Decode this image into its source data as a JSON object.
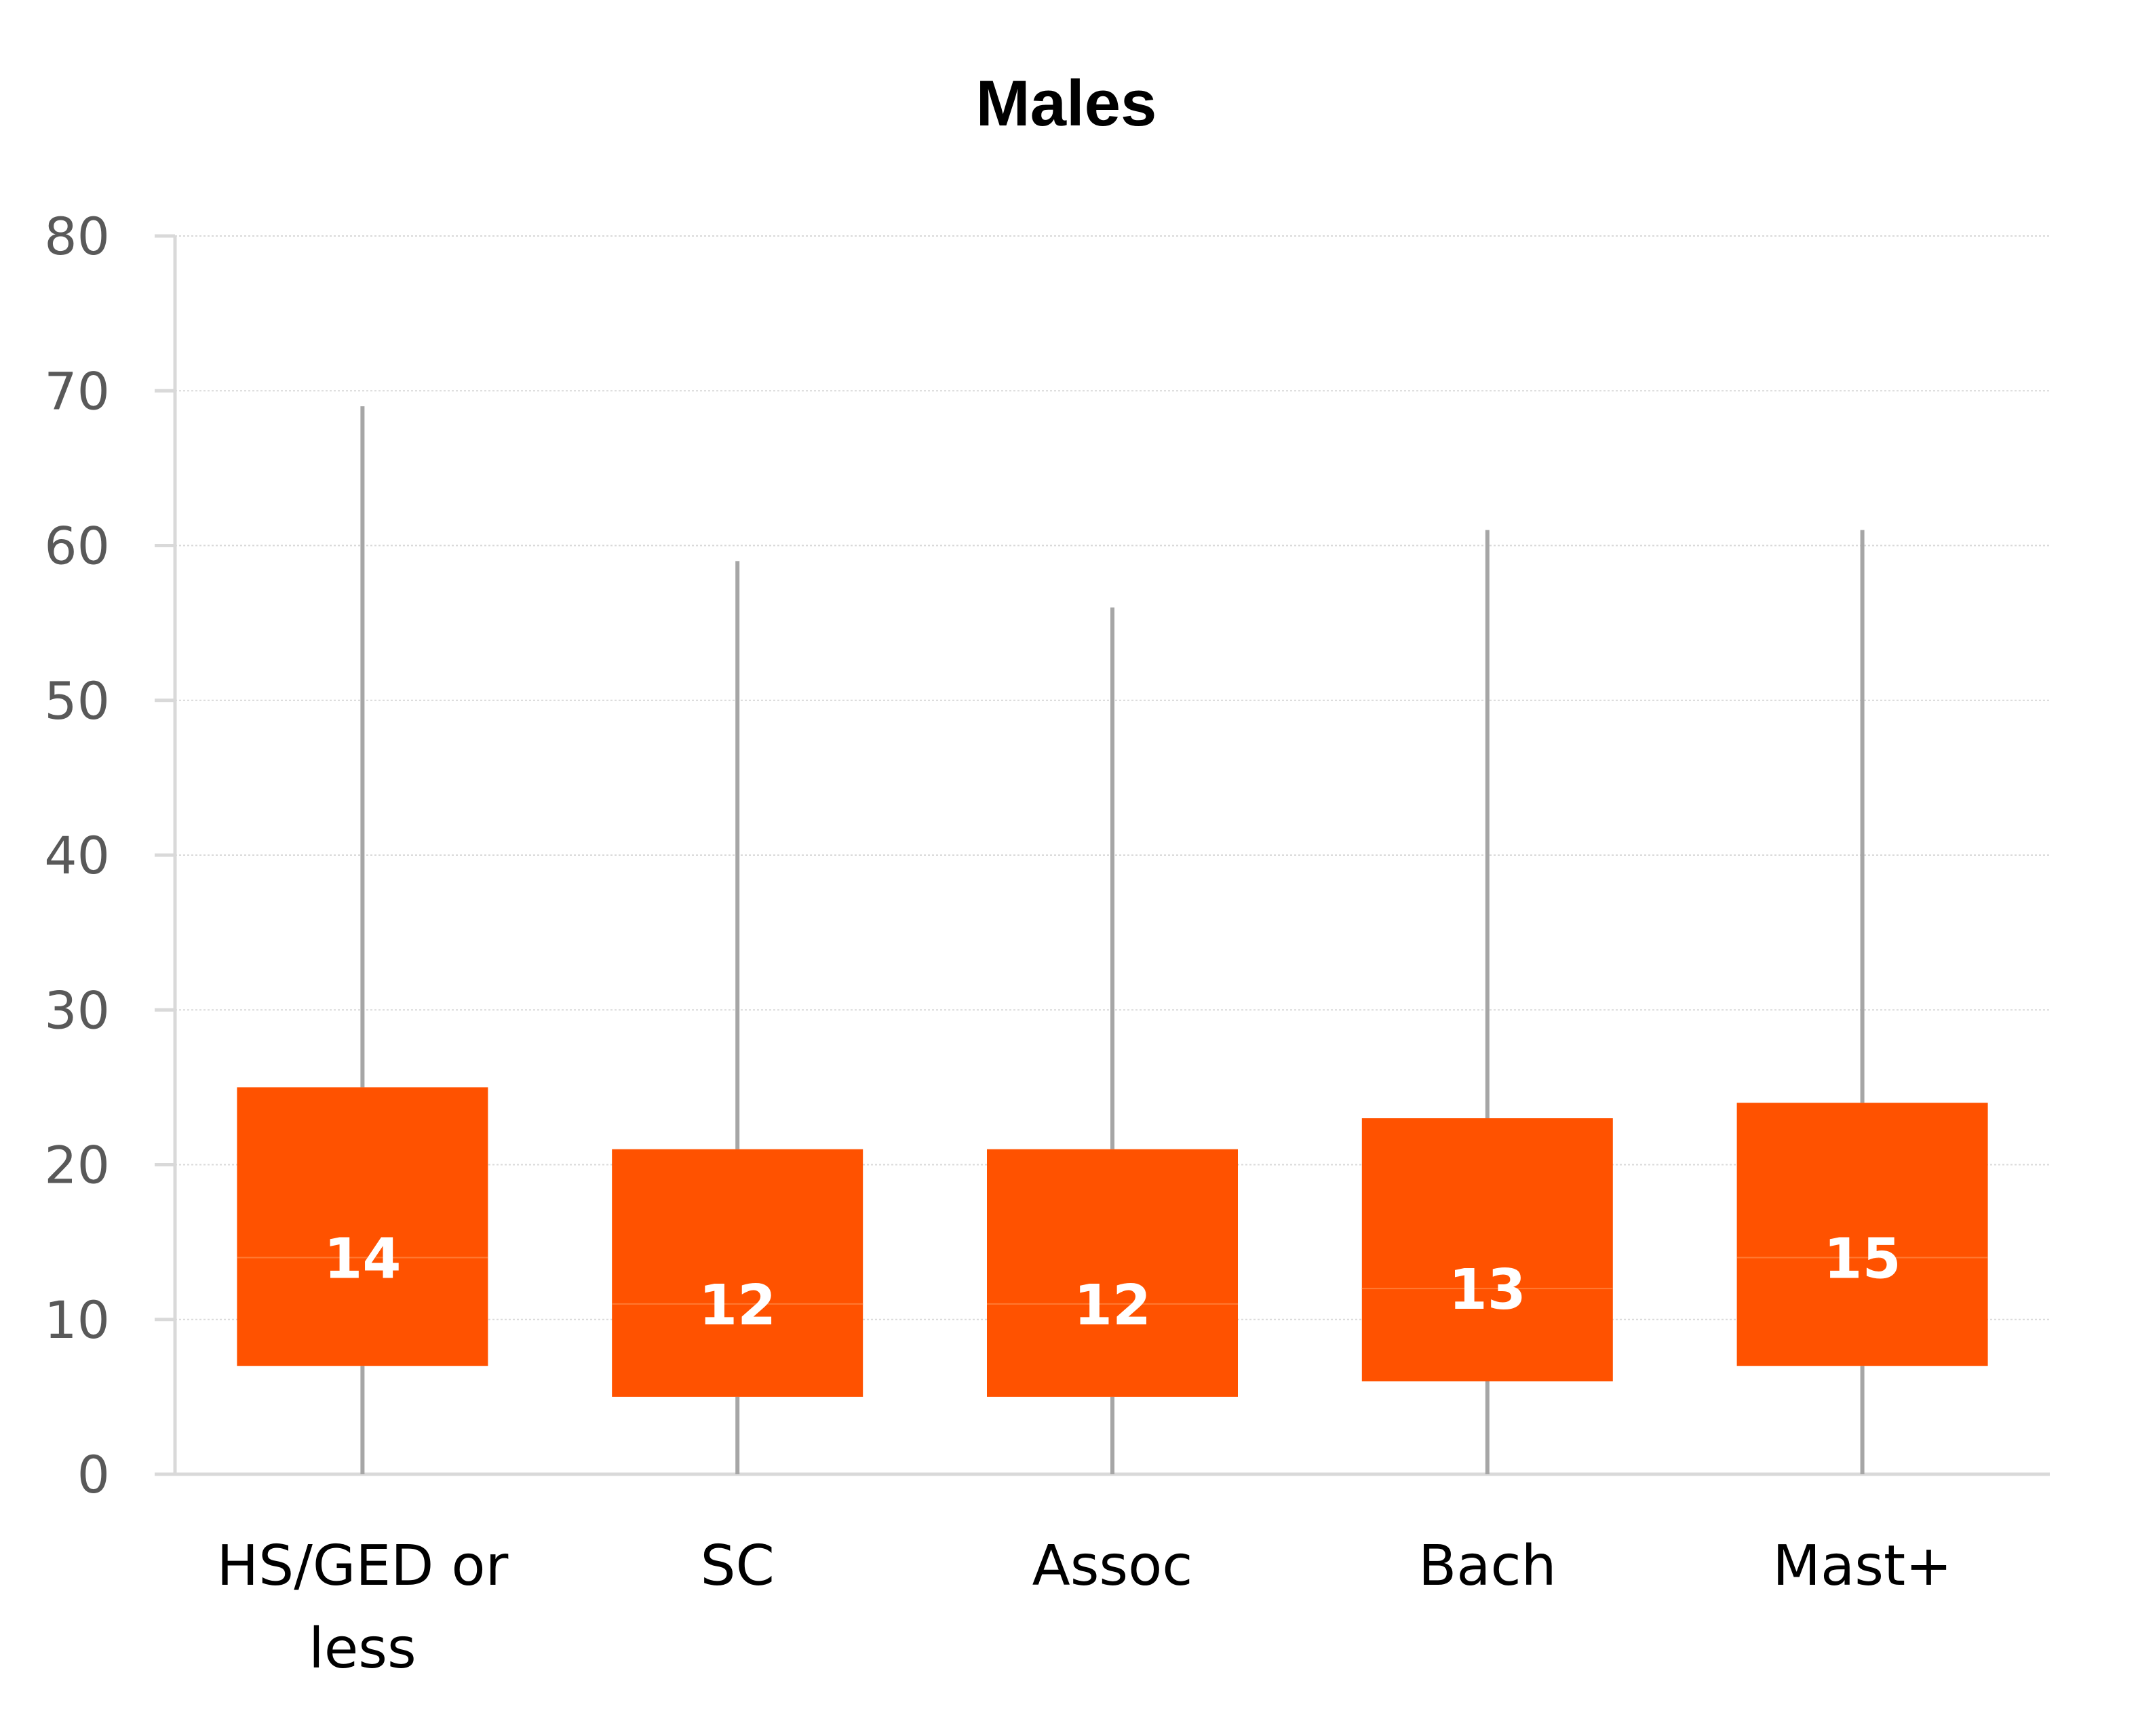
{
  "chart_data": {
    "type": "box",
    "title": "Males",
    "xlabel": "",
    "ylabel": "",
    "ylim": [
      0,
      80
    ],
    "yticks": [
      0,
      10,
      20,
      30,
      40,
      50,
      60,
      70,
      80
    ],
    "grid": true,
    "legend": "none",
    "categories": [
      "HS/GED or less",
      "SC",
      "Assoc",
      "Bach",
      "Mast+"
    ],
    "category_lines": [
      [
        "HS/GED or",
        "less"
      ],
      [
        "SC"
      ],
      [
        "Assoc"
      ],
      [
        "Bach"
      ],
      [
        "Mast+"
      ]
    ],
    "boxes": [
      {
        "category": "HS/GED or less",
        "min": 0,
        "q1": 7,
        "median": 14,
        "q3": 25,
        "max": 69,
        "label": "14"
      },
      {
        "category": "SC",
        "min": 0,
        "q1": 5,
        "median": 11,
        "q3": 21,
        "max": 59,
        "label": "12"
      },
      {
        "category": "Assoc",
        "min": 0,
        "q1": 5,
        "median": 11,
        "q3": 21,
        "max": 56,
        "label": "12"
      },
      {
        "category": "Bach",
        "min": 0,
        "q1": 6,
        "median": 12,
        "q3": 23,
        "max": 61,
        "label": "13"
      },
      {
        "category": "Mast+",
        "min": 0,
        "q1": 7,
        "median": 14,
        "q3": 24,
        "max": 61,
        "label": "15"
      }
    ],
    "colors": {
      "box": "#FF5200",
      "box_median_line": "#FF7A33",
      "whisker": "#A6A6A6",
      "axis": "#D9D9D9",
      "grid": "#D9D9D9",
      "tick_text": "#595959",
      "label_text": "#FFFFFF",
      "title_text": "#000000"
    }
  }
}
